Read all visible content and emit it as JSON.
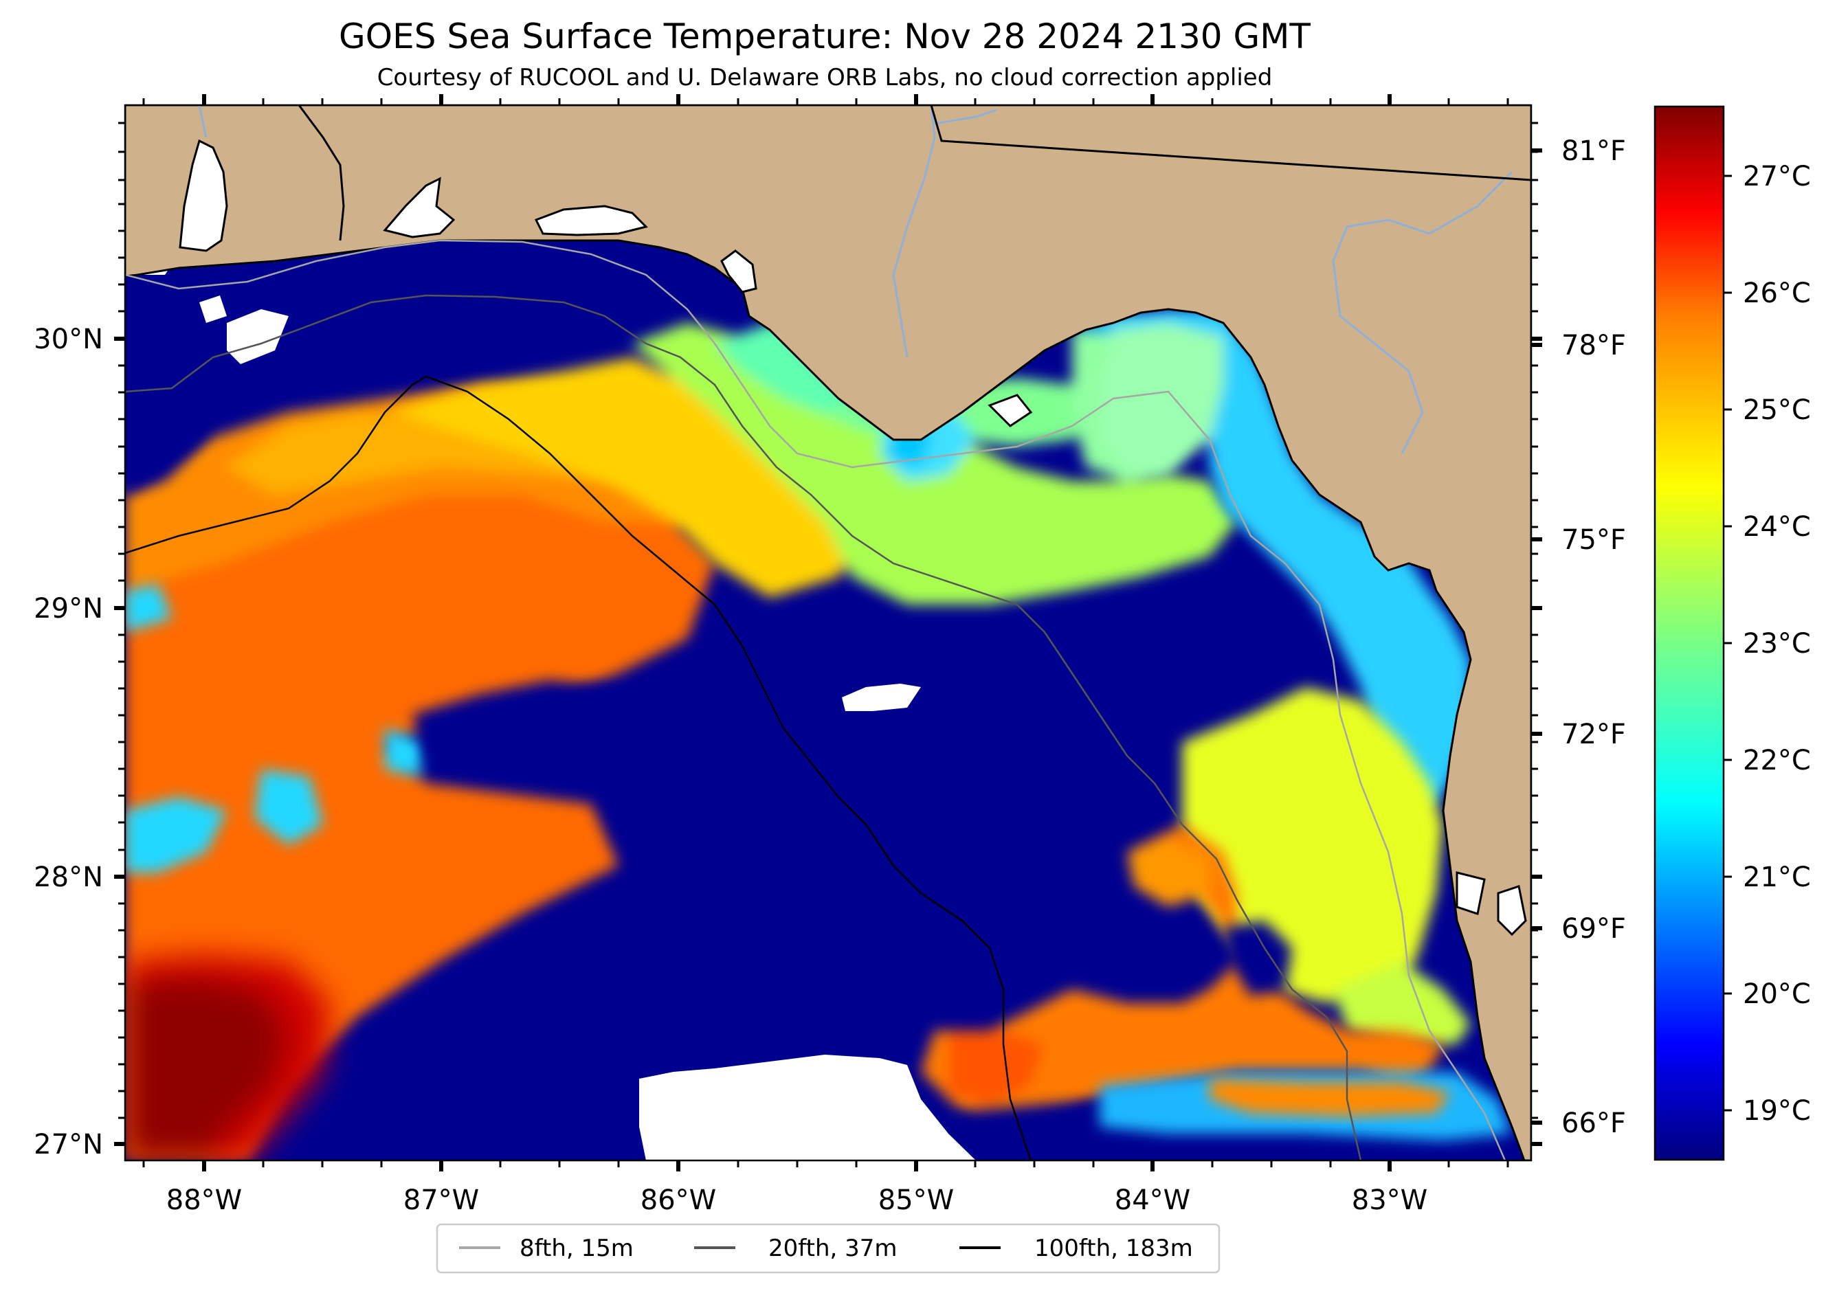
{
  "title": "GOES Sea Surface Temperature: Nov 28 2024 2130 GMT",
  "subtitle": "Courtesy of RUCOOL and U. Delaware ORB Labs, no cloud correction applied",
  "lon_ticks": [
    "88°W",
    "87°W",
    "86°W",
    "85°W",
    "84°W",
    "83°W"
  ],
  "lat_ticks": [
    "30°N",
    "29°N",
    "28°N",
    "27°N"
  ],
  "fahrenheit_ticks": [
    "81°F",
    "78°F",
    "75°F",
    "72°F",
    "69°F",
    "66°F"
  ],
  "celsius_ticks": [
    "27°C",
    "26°C",
    "25°C",
    "24°C",
    "23°C",
    "22°C",
    "21°C",
    "20°C",
    "19°C"
  ],
  "colors": {
    "land": "#cfb28b",
    "cold_water": "#00008f",
    "cloud": "#ffffff",
    "colormap": [
      "#00007f",
      "#0000ff",
      "#007fff",
      "#00ffff",
      "#7fff7f",
      "#ffff00",
      "#ff7f00",
      "#ff0000",
      "#7f0000"
    ]
  },
  "legend": [
    {
      "label": "8fth, 15m",
      "color": "#a6a6a6"
    },
    {
      "label": "20fth, 37m",
      "color": "#555555"
    },
    {
      "label": "100fth, 183m",
      "color": "#000000"
    }
  ]
}
